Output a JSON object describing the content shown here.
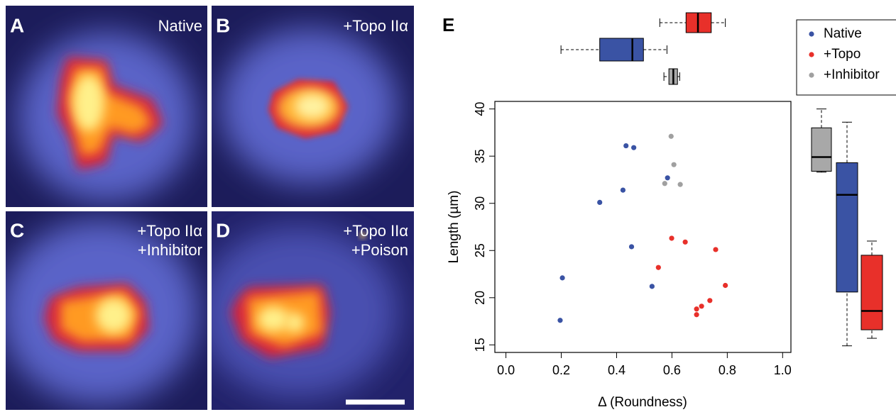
{
  "panels": [
    {
      "letter": "A",
      "labels": [
        "Native"
      ]
    },
    {
      "letter": "B",
      "labels": [
        "+Topo IIα"
      ]
    },
    {
      "letter": "C",
      "labels": [
        "+Topo IIα",
        "+Inhibitor"
      ]
    },
    {
      "letter": "D",
      "labels": [
        "+Topo IIα",
        "+Poison"
      ]
    }
  ],
  "chart_data": {
    "type": "scatter",
    "panel_letter": "E",
    "x_label": "Δ (Roundness)",
    "y_label": "Length (µm)",
    "xlim": [
      -0.04,
      1.03
    ],
    "ylim": [
      14.2,
      40.8
    ],
    "xticks": [
      {
        "value": 0,
        "label": "0.0"
      },
      0.2,
      0.4,
      0.6,
      0.8,
      {
        "value": 1,
        "label": "1.0"
      }
    ],
    "yticks": [
      15,
      20,
      25,
      30,
      35,
      40
    ],
    "legend": "top-right",
    "series": [
      {
        "name": "Native",
        "color": "#3a53a4",
        "x": [
          0.434,
          0.462,
          0.584,
          0.423,
          0.339,
          0.454,
          0.528,
          0.204,
          0.196
        ],
        "values": [
          36.1,
          35.9,
          32.7,
          31.4,
          30.1,
          25.4,
          21.2,
          22.1,
          17.6
        ],
        "box_x": [
          0.199,
          0.339,
          0.457,
          0.497,
          0.582
        ],
        "box_y": [
          14.9,
          20.6,
          30.9,
          34.3,
          38.6
        ]
      },
      {
        "name": "+Topo",
        "color": "#e8302a",
        "x": [
          0.599,
          0.648,
          0.758,
          0.551,
          0.793,
          0.737,
          0.707,
          0.689,
          0.689
        ],
        "values": [
          26.3,
          25.9,
          25.1,
          23.2,
          21.3,
          19.7,
          19.1,
          18.8,
          18.2
        ],
        "box_x": [
          0.556,
          0.651,
          0.694,
          0.742,
          0.793
        ],
        "box_y": [
          15.7,
          16.6,
          18.6,
          24.5,
          26.0
        ]
      },
      {
        "name": "+Inhibitor",
        "color": "#a0a0a0",
        "x": [
          0.597,
          0.607,
          0.574,
          0.63
        ],
        "values": [
          37.1,
          34.1,
          32.1,
          32.0
        ],
        "box_x": [
          0.571,
          0.589,
          0.605,
          0.62,
          0.628
        ],
        "box_y": [
          33.3,
          33.4,
          34.9,
          38.0,
          40.0
        ]
      }
    ]
  }
}
